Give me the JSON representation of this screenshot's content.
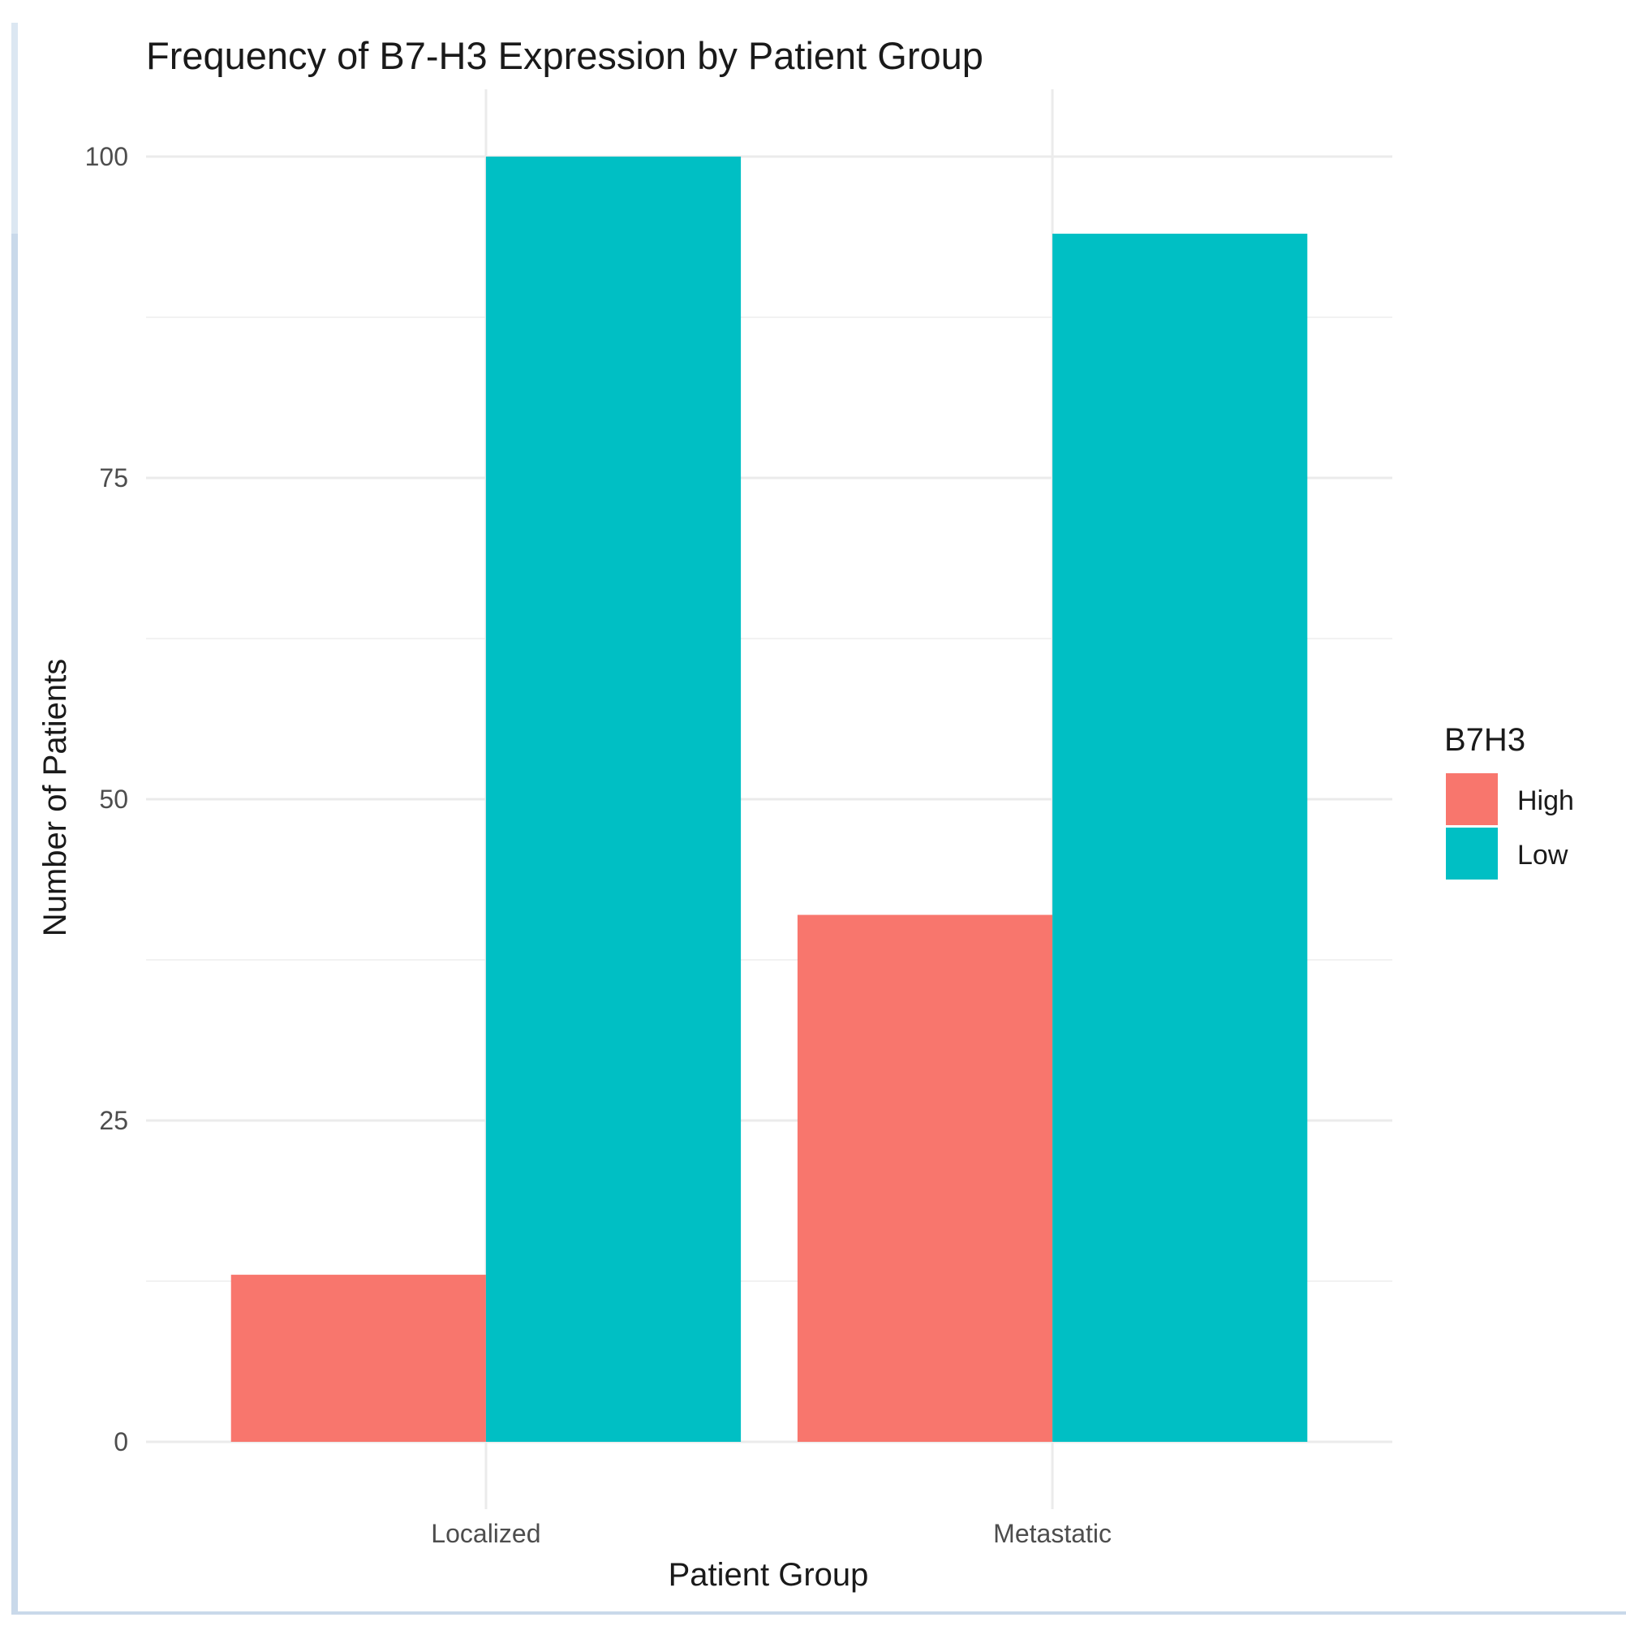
{
  "chart_data": {
    "type": "bar",
    "title": "Frequency of B7-H3 Expression by Patient Group",
    "xlabel": "Patient Group",
    "ylabel": "Number of Patients",
    "categories": [
      "Localized",
      "Metastatic"
    ],
    "series": [
      {
        "name": "High",
        "color": "#F8766D",
        "values": [
          13,
          41
        ]
      },
      {
        "name": "Low",
        "color": "#00BFC4",
        "values": [
          100,
          94
        ]
      }
    ],
    "ylim": [
      -5.2,
      105.2
    ],
    "yticks": [
      0,
      25,
      50,
      75,
      100
    ],
    "yminor": [
      12.5,
      37.5,
      62.5,
      87.5
    ],
    "legend_title": "B7H3",
    "legend_position": "right",
    "grid": true
  }
}
